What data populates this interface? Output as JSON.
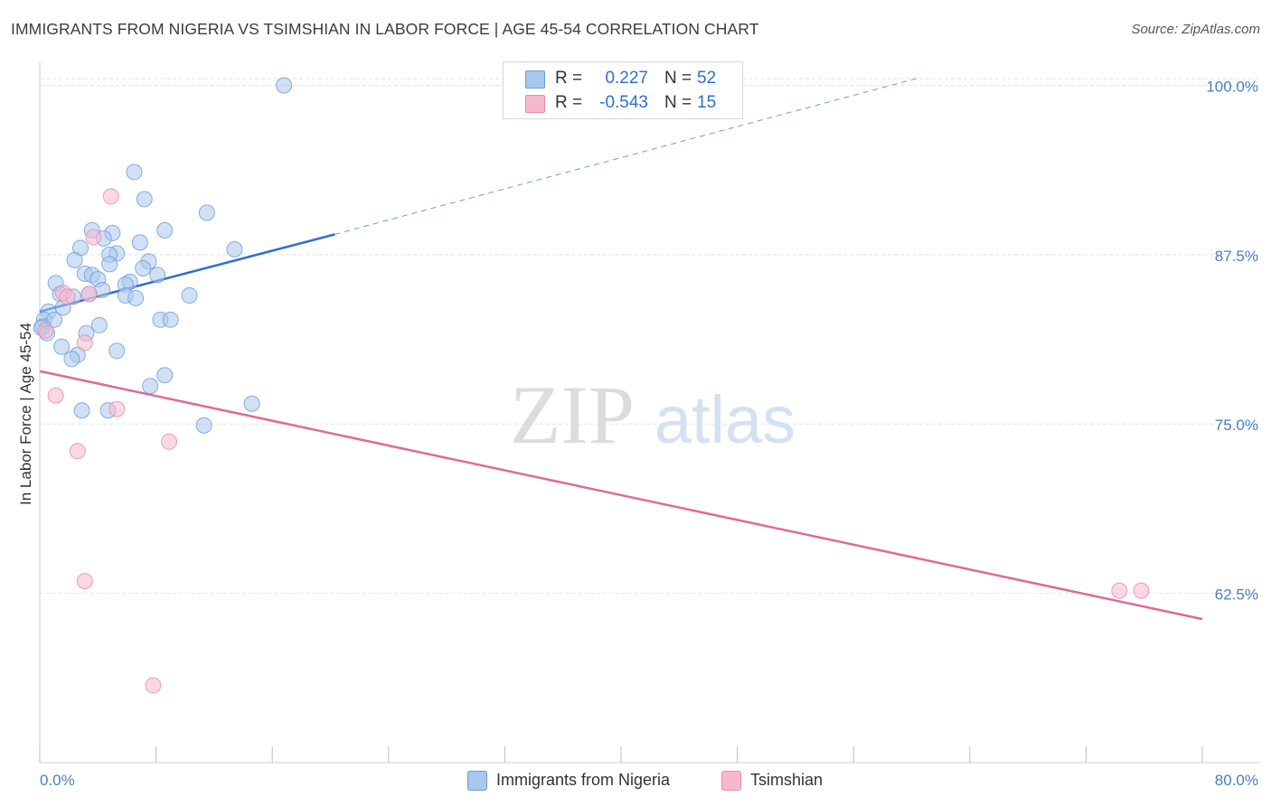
{
  "title": "IMMIGRANTS FROM NIGERIA VS TSIMSHIAN IN LABOR FORCE | AGE 45-54 CORRELATION CHART",
  "source": "Source: ZipAtlas.com",
  "watermark": {
    "zip": "ZIP",
    "atlas": "atlas"
  },
  "legend": {
    "rows": [
      {
        "r_label": "R =",
        "r_value": "0.227",
        "n_label": "N =",
        "n_value": "52",
        "color": "#a9c8ef"
      },
      {
        "r_label": "R =",
        "r_value": "-0.543",
        "n_label": "N =",
        "n_value": "15",
        "color": "#f7b8cc"
      }
    ]
  },
  "colors": {
    "blue_fill": "#a9c8ef",
    "blue_stroke": "#6c9bd6",
    "blue_line": "#2f6fd0",
    "pink_fill": "#f7b8cc",
    "pink_stroke": "#e88aa8",
    "pink_line": "#e06a95",
    "grid": "#e2e2e2",
    "tick_text": "#4a7dc4"
  },
  "chart_data": {
    "type": "scatter",
    "title": "IMMIGRANTS FROM NIGERIA VS TSIMSHIAN IN LABOR FORCE | AGE 45-54 CORRELATION CHART",
    "xlabel": "",
    "ylabel": "In Labor Force | Age 45-54",
    "xlim": [
      0,
      80
    ],
    "ylim": [
      50,
      101.5
    ],
    "x_tick_labels": [
      "0.0%",
      "80.0%"
    ],
    "y_ticks": [
      62.5,
      75.0,
      87.5,
      100.0
    ],
    "y_tick_labels": [
      "62.5%",
      "75.0%",
      "87.5%",
      "100.0%"
    ],
    "series": [
      {
        "name": "Immigrants from Nigeria",
        "color": "#a9c8ef",
        "r": 0.227,
        "n": 52,
        "points": [
          [
            16.8,
            100.0
          ],
          [
            6.5,
            93.6
          ],
          [
            7.2,
            91.6
          ],
          [
            11.5,
            90.6
          ],
          [
            3.6,
            89.3
          ],
          [
            5.0,
            89.1
          ],
          [
            4.4,
            88.7
          ],
          [
            6.9,
            88.4
          ],
          [
            8.6,
            89.3
          ],
          [
            13.4,
            87.9
          ],
          [
            2.8,
            88.0
          ],
          [
            5.3,
            87.6
          ],
          [
            4.8,
            87.5
          ],
          [
            2.4,
            87.1
          ],
          [
            7.5,
            87.0
          ],
          [
            4.8,
            86.8
          ],
          [
            7.1,
            86.5
          ],
          [
            3.1,
            86.1
          ],
          [
            3.6,
            86.0
          ],
          [
            8.1,
            86.0
          ],
          [
            4.0,
            85.7
          ],
          [
            6.2,
            85.5
          ],
          [
            1.1,
            85.4
          ],
          [
            5.9,
            85.3
          ],
          [
            4.3,
            84.9
          ],
          [
            1.4,
            84.6
          ],
          [
            3.4,
            84.6
          ],
          [
            5.9,
            84.5
          ],
          [
            6.6,
            84.3
          ],
          [
            10.3,
            84.5
          ],
          [
            1.6,
            83.6
          ],
          [
            0.6,
            83.3
          ],
          [
            0.3,
            82.7
          ],
          [
            1.0,
            82.7
          ],
          [
            8.3,
            82.7
          ],
          [
            9.0,
            82.7
          ],
          [
            0.2,
            82.2
          ],
          [
            4.1,
            82.3
          ],
          [
            3.2,
            81.7
          ],
          [
            1.5,
            80.7
          ],
          [
            5.3,
            80.4
          ],
          [
            2.6,
            80.1
          ],
          [
            2.2,
            79.8
          ],
          [
            8.6,
            78.6
          ],
          [
            7.6,
            77.8
          ],
          [
            14.6,
            76.5
          ],
          [
            2.9,
            76.0
          ],
          [
            4.7,
            76.0
          ],
          [
            11.3,
            74.9
          ],
          [
            0.1,
            82.1
          ],
          [
            0.5,
            81.7
          ],
          [
            2.3,
            84.4
          ]
        ]
      },
      {
        "name": "Tsimshian",
        "color": "#f7b8cc",
        "r": -0.543,
        "n": 15,
        "points": [
          [
            4.9,
            91.8
          ],
          [
            3.7,
            88.8
          ],
          [
            1.6,
            84.7
          ],
          [
            3.4,
            84.6
          ],
          [
            0.4,
            81.9
          ],
          [
            3.1,
            81.0
          ],
          [
            1.1,
            77.1
          ],
          [
            5.3,
            76.1
          ],
          [
            2.6,
            73.0
          ],
          [
            8.9,
            73.7
          ],
          [
            3.1,
            63.4
          ],
          [
            7.8,
            55.7
          ],
          [
            74.3,
            62.7
          ],
          [
            75.8,
            62.7
          ],
          [
            1.9,
            84.4
          ]
        ]
      }
    ],
    "trendlines": [
      {
        "series": "Immigrants from Nigeria",
        "x": [
          0,
          20.3
        ],
        "y": [
          83.3,
          89.0
        ],
        "style": "solid",
        "extended_to": [
          60.3,
          100.5
        ],
        "extended_style": "dashed"
      },
      {
        "series": "Tsimshian",
        "x": [
          0,
          80
        ],
        "y": [
          78.9,
          60.6
        ],
        "style": "solid"
      }
    ]
  },
  "bottom_legend": {
    "items": [
      {
        "label": "Immigrants from Nigeria",
        "color": "#a9c8ef"
      },
      {
        "label": "Tsimshian",
        "color": "#f7b8cc"
      }
    ]
  }
}
